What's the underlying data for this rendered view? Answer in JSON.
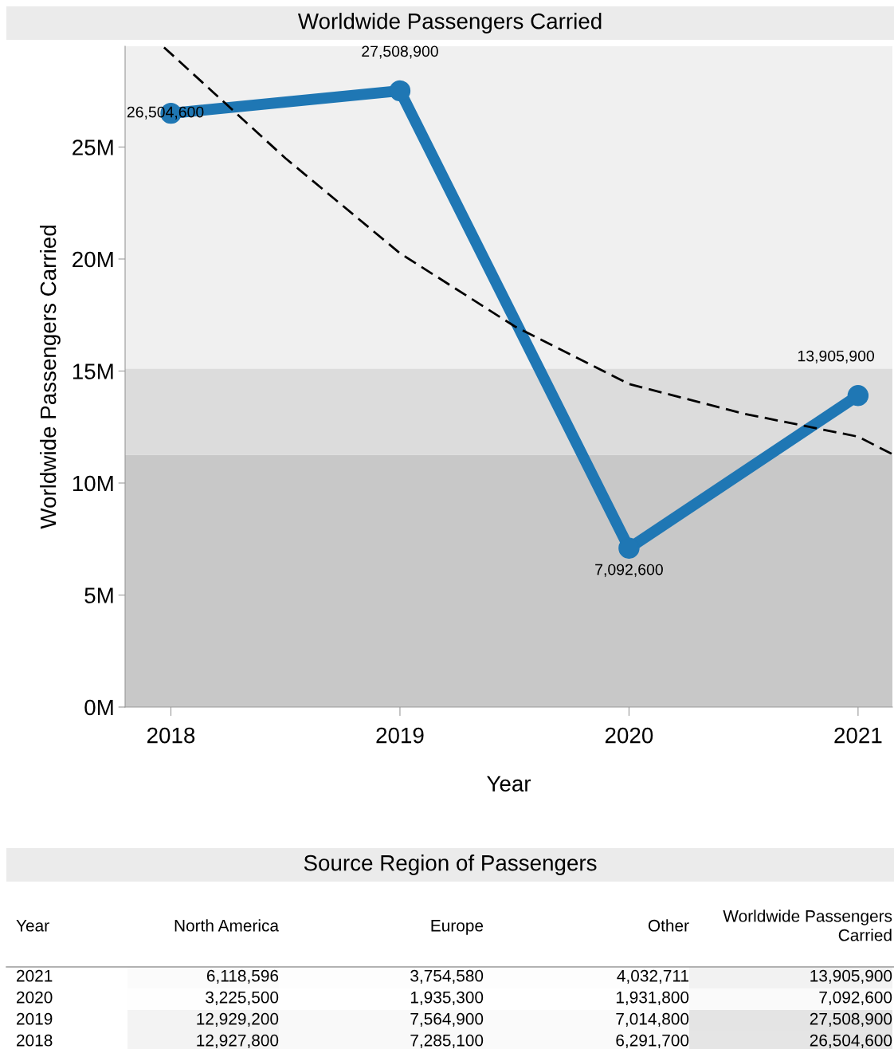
{
  "chart_data": [
    {
      "type": "line",
      "title": "Worldwide Passengers Carried",
      "xlabel": "Year",
      "ylabel": "Worldwide Passengers Carried",
      "x": [
        2018,
        2019,
        2020,
        2021
      ],
      "series": [
        {
          "color": "#1f77b4",
          "values": [
            26504600,
            27508900,
            7092600,
            13905900
          ],
          "marker": "circle",
          "value_labels": [
            "26,504,600",
            "27,508,900",
            "7,092,600",
            "13,905,900"
          ]
        },
        {
          "type": "line",
          "color": "#000000",
          "line_style": "dashed",
          "marker": "none",
          "x": [
            2017.97,
            2018.5,
            2019,
            2019.5,
            2020,
            2020.5,
            2021,
            2021.15
          ],
          "values": [
            29450000,
            24500000,
            20260000,
            17000000,
            14420000,
            13100000,
            12070000,
            11290000
          ]
        }
      ],
      "xlim": [
        2017.8,
        2021.15
      ],
      "xticks": [
        2018,
        2019,
        2020,
        2021
      ],
      "ylim": [
        0,
        29500000
      ],
      "yticks": [
        {
          "value": 0,
          "label": "0M"
        },
        {
          "value": 5000000,
          "label": "5M"
        },
        {
          "value": 10000000,
          "label": "10M"
        },
        {
          "value": 15000000,
          "label": "15M"
        },
        {
          "value": 20000000,
          "label": "20M"
        },
        {
          "value": 25000000,
          "label": "25M"
        }
      ],
      "bands": [
        {
          "axis": "y",
          "from": 0,
          "to": 11250000,
          "color": "#c8c8c8"
        },
        {
          "axis": "y",
          "from": 11250000,
          "to": 15100000,
          "color": "#dcdcdc"
        }
      ],
      "grid": false,
      "legend": false
    },
    {
      "type": "heatmap",
      "title": "Source Region of Passengers",
      "ylabel": "Year",
      "categories": [
        "North America",
        "Europe",
        "Other",
        "Worldwide Passengers\nCarried"
      ],
      "y_categories": [
        "2021",
        "2020",
        "2019",
        "2018"
      ],
      "cells": [
        [
          6118596,
          3754580,
          4032711,
          13905900
        ],
        [
          3225500,
          1935300,
          1931800,
          7092600
        ],
        [
          12929200,
          7564900,
          7014800,
          27508900
        ],
        [
          12927800,
          7285100,
          6291700,
          26504600
        ]
      ],
      "cell_labels": [
        [
          "6,118,596",
          "3,754,580",
          "4,032,711",
          "13,905,900"
        ],
        [
          "3,225,500",
          "1,935,300",
          "1,931,800",
          "7,092,600"
        ],
        [
          "12,929,200",
          "7,564,900",
          "7,014,800",
          "27,508,900"
        ],
        [
          "12,927,800",
          "7,285,100",
          "6,291,700",
          "26,504,600"
        ]
      ]
    }
  ]
}
